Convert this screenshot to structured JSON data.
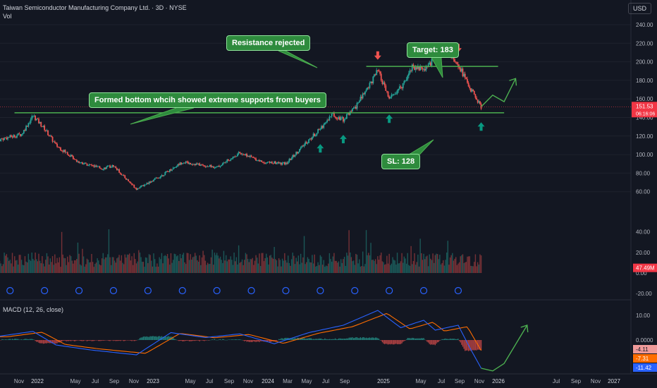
{
  "header": {
    "symbol_line": "Taiwan Semiconductor Manufacturing Company Ltd. · 3D · NYSE",
    "vol_label": "Vol",
    "currency": "USD"
  },
  "annotations": {
    "resistance": "Resistance rejected",
    "bottom": "Formed bottom whcih showed extreme supports from buyers",
    "target": "Target: 183",
    "stoploss": "SL: 128"
  },
  "colors": {
    "background": "#131722",
    "up": "#26a69a",
    "down": "#ef5350",
    "macd": "#2962ff",
    "signal": "#ff6d00",
    "annotation": "#4caf50",
    "price_line": "#f23645"
  },
  "chart_data": [
    {
      "type": "candlestick",
      "title": "",
      "x_labels": [
        "Nov",
        "2022",
        "May",
        "Jul",
        "Sep",
        "Nov",
        "2023",
        "May",
        "Jul",
        "Sep",
        "Nov",
        "2024",
        "Mar",
        "May",
        "Jul",
        "Sep",
        "2025",
        "May",
        "Jul",
        "Sep",
        "Nov",
        "2026",
        "Jul",
        "Sep",
        "Nov",
        "2027"
      ],
      "y_ticks": [
        "240.00",
        "220.00",
        "200.00",
        "180.00",
        "160.00",
        "140.00",
        "120.00",
        "100.00",
        "80.00",
        "60.00"
      ],
      "ylim": [
        55,
        245
      ],
      "price_path": [
        {
          "date": "2021-10",
          "price": 116
        },
        {
          "date": "2021-12",
          "price": 122
        },
        {
          "date": "2022-01",
          "price": 142
        },
        {
          "date": "2022-02",
          "price": 128
        },
        {
          "date": "2022-03",
          "price": 110
        },
        {
          "date": "2022-05",
          "price": 92
        },
        {
          "date": "2022-07",
          "price": 85
        },
        {
          "date": "2022-08",
          "price": 88
        },
        {
          "date": "2022-09",
          "price": 75
        },
        {
          "date": "2022-10",
          "price": 63
        },
        {
          "date": "2022-12",
          "price": 76
        },
        {
          "date": "2023-02",
          "price": 92
        },
        {
          "date": "2023-03",
          "price": 90
        },
        {
          "date": "2023-05",
          "price": 86
        },
        {
          "date": "2023-07",
          "price": 102
        },
        {
          "date": "2023-09",
          "price": 92
        },
        {
          "date": "2023-11",
          "price": 90
        },
        {
          "date": "2023-12",
          "price": 103
        },
        {
          "date": "2024-02",
          "price": 128
        },
        {
          "date": "2024-03",
          "price": 143
        },
        {
          "date": "2024-04",
          "price": 138
        },
        {
          "date": "2024-05",
          "price": 150
        },
        {
          "date": "2024-07",
          "price": 190
        },
        {
          "date": "2024-08",
          "price": 160
        },
        {
          "date": "2024-09",
          "price": 172
        },
        {
          "date": "2024-10",
          "price": 195
        },
        {
          "date": "2024-11",
          "price": 192
        },
        {
          "date": "2024-12",
          "price": 204
        },
        {
          "date": "2025-01",
          "price": 215
        },
        {
          "date": "2025-02",
          "price": 198
        },
        {
          "date": "2025-03",
          "price": 172
        },
        {
          "date": "2025-04",
          "price": 151.53
        }
      ],
      "last_price": {
        "value": "151.53",
        "countdown": "06:16:06"
      },
      "support_level": 145,
      "resistance_level": 195,
      "projection": [
        {
          "date": "2025-04",
          "price": 151.53
        },
        {
          "date": "2025-05",
          "price": 164
        },
        {
          "date": "2025-06",
          "price": 157
        },
        {
          "date": "2025-07",
          "price": 182
        }
      ],
      "target": 183,
      "stop_loss": 128,
      "signal_arrows_up": [
        "2024-02",
        "2024-04",
        "2024-08",
        "2025-04"
      ],
      "signal_arrows_down": [
        "2024-07",
        "2025-02"
      ]
    },
    {
      "type": "bar",
      "title": "Vol",
      "y_ticks": [
        "40.00",
        "20.00",
        "0.00",
        "-20.00"
      ],
      "ylim": [
        -25,
        55
      ],
      "last_volume": "47.49M"
    },
    {
      "type": "line",
      "title": "MACD (12, 26, close)",
      "y_ticks": [
        "10.00",
        "0.0000"
      ],
      "ylim": [
        -13,
        13
      ],
      "series": [
        {
          "name": "MACD",
          "last": "-11.42"
        },
        {
          "name": "Signal",
          "last": "-7.31"
        },
        {
          "name": "Histogram",
          "last": "-4.11"
        }
      ],
      "macd_path": [
        {
          "date": "2021-10",
          "value": 1.5
        },
        {
          "date": "2022-01",
          "value": 3.5
        },
        {
          "date": "2022-03",
          "value": -2
        },
        {
          "date": "2022-06",
          "value": -4
        },
        {
          "date": "2022-10",
          "value": -6
        },
        {
          "date": "2023-01",
          "value": 3
        },
        {
          "date": "2023-04",
          "value": 1
        },
        {
          "date": "2023-07",
          "value": 2.5
        },
        {
          "date": "2023-10",
          "value": -1.5
        },
        {
          "date": "2024-01",
          "value": 3
        },
        {
          "date": "2024-04",
          "value": 6
        },
        {
          "date": "2024-07",
          "value": 12
        },
        {
          "date": "2024-09",
          "value": 5
        },
        {
          "date": "2024-11",
          "value": 8
        },
        {
          "date": "2024-12",
          "value": 4
        },
        {
          "date": "2025-02",
          "value": 6
        },
        {
          "date": "2025-03",
          "value": -3
        },
        {
          "date": "2025-04",
          "value": -11.42
        }
      ],
      "macd_projection": [
        {
          "date": "2025-04",
          "value": -11.42
        },
        {
          "date": "2025-05",
          "value": -12.5
        },
        {
          "date": "2025-06",
          "value": -9.5
        },
        {
          "date": "2025-08",
          "value": 6
        }
      ]
    }
  ]
}
